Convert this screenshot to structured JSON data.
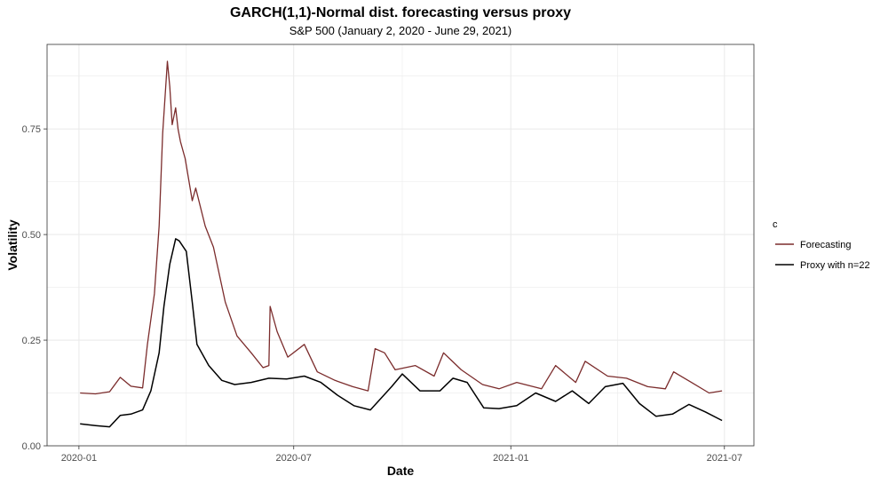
{
  "chart_data": {
    "type": "line",
    "title": "GARCH(1,1)-Normal dist. forecasting versus proxy",
    "subtitle": "S&P 500 (January 2, 2020 - June 29, 2021)",
    "xlabel": "Date",
    "ylabel": "Volatility",
    "x_ticks": [
      "2020-01",
      "2020-07",
      "2021-01",
      "2021-07"
    ],
    "y_ticks": [
      "0.00",
      "0.25",
      "0.50",
      "0.75"
    ],
    "xlim": [
      "2019-12-05",
      "2021-07-26"
    ],
    "ylim": [
      0,
      0.95
    ],
    "grid": true,
    "legend_title": "c",
    "legend_position": "right",
    "colors": {
      "forecasting": "#7b2c2c",
      "proxy": "#000000",
      "grid": "#ebebeb"
    },
    "series": [
      {
        "name": "Forecasting",
        "x": [
          "2020-01-02",
          "2020-01-15",
          "2020-01-27",
          "2020-02-05",
          "2020-02-14",
          "2020-02-24",
          "2020-02-28",
          "2020-03-05",
          "2020-03-09",
          "2020-03-12",
          "2020-03-16",
          "2020-03-18",
          "2020-03-20",
          "2020-03-23",
          "2020-03-25",
          "2020-03-27",
          "2020-03-31",
          "2020-04-06",
          "2020-04-09",
          "2020-04-17",
          "2020-04-24",
          "2020-05-04",
          "2020-05-14",
          "2020-05-26",
          "2020-06-05",
          "2020-06-10",
          "2020-06-11",
          "2020-06-17",
          "2020-06-26",
          "2020-07-10",
          "2020-07-21",
          "2020-08-05",
          "2020-08-20",
          "2020-09-02",
          "2020-09-08",
          "2020-09-16",
          "2020-09-25",
          "2020-10-12",
          "2020-10-28",
          "2020-11-05",
          "2020-11-20",
          "2020-12-08",
          "2020-12-22",
          "2021-01-06",
          "2021-01-27",
          "2021-02-08",
          "2021-02-25",
          "2021-03-05",
          "2021-03-24",
          "2021-04-09",
          "2021-04-27",
          "2021-05-12",
          "2021-05-19",
          "2021-06-03",
          "2021-06-18",
          "2021-06-29"
        ],
        "values": [
          0.125,
          0.123,
          0.128,
          0.162,
          0.141,
          0.137,
          0.24,
          0.36,
          0.52,
          0.74,
          0.91,
          0.85,
          0.76,
          0.8,
          0.75,
          0.72,
          0.68,
          0.58,
          0.61,
          0.52,
          0.47,
          0.34,
          0.26,
          0.22,
          0.185,
          0.19,
          0.33,
          0.27,
          0.21,
          0.24,
          0.175,
          0.155,
          0.14,
          0.13,
          0.23,
          0.22,
          0.18,
          0.19,
          0.165,
          0.22,
          0.18,
          0.145,
          0.135,
          0.15,
          0.135,
          0.19,
          0.15,
          0.2,
          0.165,
          0.16,
          0.14,
          0.135,
          0.175,
          0.15,
          0.125,
          0.13
        ]
      },
      {
        "name": "Proxy with n=22",
        "x": [
          "2020-01-02",
          "2020-01-15",
          "2020-01-27",
          "2020-02-05",
          "2020-02-14",
          "2020-02-24",
          "2020-03-02",
          "2020-03-09",
          "2020-03-13",
          "2020-03-18",
          "2020-03-23",
          "2020-03-26",
          "2020-04-01",
          "2020-04-06",
          "2020-04-10",
          "2020-04-20",
          "2020-05-01",
          "2020-05-12",
          "2020-05-26",
          "2020-06-10",
          "2020-06-25",
          "2020-07-10",
          "2020-07-24",
          "2020-08-07",
          "2020-08-21",
          "2020-09-04",
          "2020-09-22",
          "2020-10-01",
          "2020-10-16",
          "2020-11-02",
          "2020-11-13",
          "2020-11-25",
          "2020-12-09",
          "2020-12-22",
          "2021-01-06",
          "2021-01-22",
          "2021-02-08",
          "2021-02-22",
          "2021-03-08",
          "2021-03-22",
          "2021-04-06",
          "2021-04-20",
          "2021-05-04",
          "2021-05-18",
          "2021-06-01",
          "2021-06-15",
          "2021-06-29"
        ],
        "values": [
          0.052,
          0.048,
          0.045,
          0.072,
          0.075,
          0.085,
          0.13,
          0.22,
          0.33,
          0.43,
          0.49,
          0.485,
          0.46,
          0.34,
          0.24,
          0.19,
          0.155,
          0.145,
          0.15,
          0.16,
          0.158,
          0.165,
          0.15,
          0.12,
          0.095,
          0.085,
          0.14,
          0.17,
          0.13,
          0.13,
          0.16,
          0.15,
          0.09,
          0.088,
          0.095,
          0.125,
          0.105,
          0.13,
          0.1,
          0.14,
          0.148,
          0.1,
          0.07,
          0.075,
          0.098,
          0.08,
          0.06
        ]
      }
    ]
  }
}
